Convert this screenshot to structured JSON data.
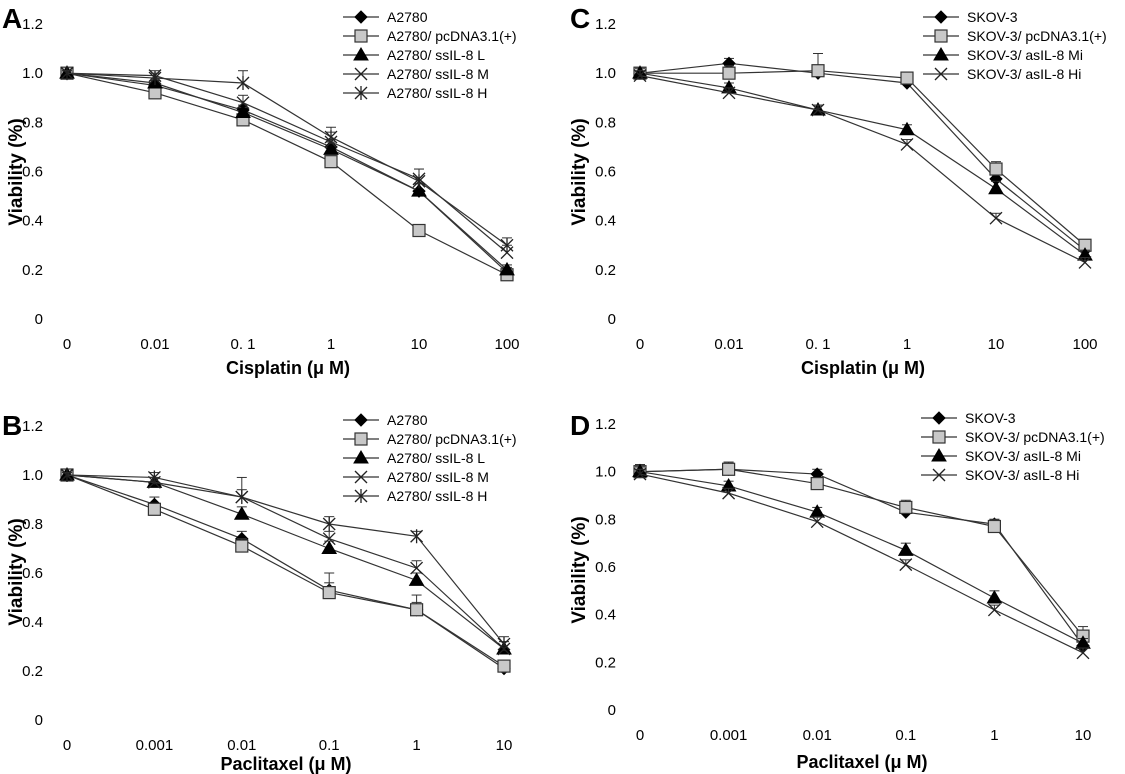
{
  "chart_data": [
    {
      "panel": "A",
      "type": "line",
      "xlabel": "Cisplatin (μ M)",
      "ylabel": "Viability (%)",
      "categories": [
        "0",
        "0.01",
        "0. 1",
        "1",
        "10",
        "100"
      ],
      "yticks": [
        "0",
        "0.2",
        "0.4",
        "0.6",
        "0.8",
        "1.0",
        "1.2"
      ],
      "ylim": [
        0,
        1.2
      ],
      "grid": false,
      "legend_position": "top-right",
      "series": [
        {
          "name": "A2780",
          "marker": "diamond",
          "values": [
            1.0,
            0.95,
            0.85,
            0.7,
            0.52,
            0.19
          ],
          "errors": [
            0.01,
            0.02,
            0.02,
            0.03,
            0.03,
            0.02
          ]
        },
        {
          "name": "A2780/ pcDNA3.1(+)",
          "marker": "square",
          "values": [
            1.0,
            0.92,
            0.81,
            0.64,
            0.36,
            0.18
          ],
          "errors": [
            0.01,
            0.02,
            0.02,
            0.02,
            0.02,
            0.02
          ]
        },
        {
          "name": "A2780/ ssIL-8 L",
          "marker": "triangle",
          "values": [
            1.0,
            0.96,
            0.84,
            0.69,
            0.52,
            0.2
          ],
          "errors": [
            0.01,
            0.02,
            0.02,
            0.03,
            0.03,
            0.02
          ]
        },
        {
          "name": "A2780/ ssIL-8 M",
          "marker": "x",
          "values": [
            1.0,
            0.99,
            0.88,
            0.72,
            0.57,
            0.27
          ],
          "errors": [
            0.01,
            0.02,
            0.03,
            0.04,
            0.04,
            0.03
          ]
        },
        {
          "name": "A2780/ ssIL-8 H",
          "marker": "star",
          "values": [
            1.0,
            0.98,
            0.96,
            0.74,
            0.56,
            0.3
          ],
          "errors": [
            0.01,
            0.02,
            0.05,
            0.04,
            0.05,
            0.03
          ]
        }
      ]
    },
    {
      "panel": "C",
      "type": "line",
      "xlabel": "Cisplatin (μ M)",
      "ylabel": "Viability (%)",
      "categories": [
        "0",
        "0.01",
        "0. 1",
        "1",
        "10",
        "100"
      ],
      "yticks": [
        "0",
        "0.2",
        "0.4",
        "0.6",
        "0.8",
        "1.0",
        "1.2"
      ],
      "ylim": [
        0,
        1.2
      ],
      "grid": false,
      "legend_position": "top-right",
      "series": [
        {
          "name": "SKOV-3",
          "marker": "diamond",
          "values": [
            1.0,
            1.04,
            1.0,
            0.96,
            0.57,
            0.28
          ],
          "errors": [
            0.02,
            0.02,
            0.03,
            0.02,
            0.03,
            0.02
          ]
        },
        {
          "name": "SKOV-3/ pcDNA3.1(+)",
          "marker": "square",
          "values": [
            1.0,
            1.0,
            1.01,
            0.98,
            0.61,
            0.3
          ],
          "errors": [
            0.02,
            0.03,
            0.07,
            0.02,
            0.03,
            0.02
          ]
        },
        {
          "name": "SKOV-3/ asIL-8 Mi",
          "marker": "triangle",
          "values": [
            1.0,
            0.94,
            0.85,
            0.77,
            0.53,
            0.26
          ],
          "errors": [
            0.02,
            0.02,
            0.02,
            0.02,
            0.03,
            0.02
          ]
        },
        {
          "name": "SKOV-3/ asIL-8 Hi",
          "marker": "x",
          "values": [
            0.99,
            0.92,
            0.85,
            0.71,
            0.41,
            0.23
          ],
          "errors": [
            0.02,
            0.02,
            0.02,
            0.02,
            0.02,
            0.02
          ]
        }
      ]
    },
    {
      "panel": "B",
      "type": "line",
      "xlabel": "Paclitaxel (μ M)",
      "ylabel": "Viability (%)",
      "categories": [
        "0",
        "0.001",
        "0.01",
        "0.1",
        "1",
        "10"
      ],
      "yticks": [
        "0",
        "0.2",
        "0.4",
        "0.6",
        "0.8",
        "1.0",
        "1.2"
      ],
      "ylim": [
        0,
        1.2
      ],
      "grid": false,
      "legend_position": "top-right",
      "series": [
        {
          "name": "A2780",
          "marker": "diamond",
          "values": [
            1.0,
            0.88,
            0.74,
            0.53,
            0.45,
            0.21
          ],
          "errors": [
            0.01,
            0.03,
            0.03,
            0.03,
            0.03,
            0.02
          ]
        },
        {
          "name": "A2780/ pcDNA3.1(+)",
          "marker": "square",
          "values": [
            1.0,
            0.86,
            0.71,
            0.52,
            0.45,
            0.22
          ],
          "errors": [
            0.01,
            0.02,
            0.03,
            0.08,
            0.06,
            0.02
          ]
        },
        {
          "name": "A2780/ ssIL-8 L",
          "marker": "triangle",
          "values": [
            1.0,
            0.97,
            0.84,
            0.7,
            0.57,
            0.29
          ],
          "errors": [
            0.01,
            0.02,
            0.03,
            0.03,
            0.03,
            0.03
          ]
        },
        {
          "name": "A2780/ ssIL-8 M",
          "marker": "x",
          "values": [
            1.0,
            0.97,
            0.91,
            0.74,
            0.62,
            0.29
          ],
          "errors": [
            0.01,
            0.02,
            0.08,
            0.03,
            0.03,
            0.03
          ]
        },
        {
          "name": "A2780/ ssIL-8 H",
          "marker": "star",
          "values": [
            1.0,
            0.99,
            0.91,
            0.8,
            0.75,
            0.31
          ],
          "errors": [
            0.01,
            0.02,
            0.03,
            0.03,
            0.02,
            0.03
          ]
        }
      ]
    },
    {
      "panel": "D",
      "type": "line",
      "xlabel": "Paclitaxel (μ M)",
      "ylabel": "Viability (%)",
      "categories": [
        "0",
        "0.001",
        "0.01",
        "0.1",
        "1",
        "10"
      ],
      "yticks": [
        "0",
        "0.2",
        "0.4",
        "0.6",
        "0.8",
        "1.0",
        "1.2"
      ],
      "ylim": [
        0,
        1.2
      ],
      "grid": false,
      "legend_position": "top-right",
      "series": [
        {
          "name": "SKOV-3",
          "marker": "diamond",
          "values": [
            1.0,
            1.01,
            0.99,
            0.83,
            0.78,
            0.27
          ],
          "errors": [
            0.03,
            0.03,
            0.02,
            0.02,
            0.02,
            0.02
          ]
        },
        {
          "name": "SKOV-3/ pcDNA3.1(+)",
          "marker": "square",
          "values": [
            1.0,
            1.01,
            0.95,
            0.85,
            0.77,
            0.31
          ],
          "errors": [
            0.03,
            0.03,
            0.02,
            0.03,
            0.03,
            0.04
          ]
        },
        {
          "name": "SKOV-3/ asIL-8 Mi",
          "marker": "triangle",
          "values": [
            1.0,
            0.94,
            0.83,
            0.67,
            0.47,
            0.28
          ],
          "errors": [
            0.02,
            0.02,
            0.02,
            0.03,
            0.03,
            0.02
          ]
        },
        {
          "name": "SKOV-3/ asIL-8 Hi",
          "marker": "x",
          "values": [
            0.99,
            0.91,
            0.79,
            0.61,
            0.42,
            0.24
          ],
          "errors": [
            0.02,
            0.02,
            0.02,
            0.02,
            0.02,
            0.02
          ]
        }
      ]
    }
  ]
}
